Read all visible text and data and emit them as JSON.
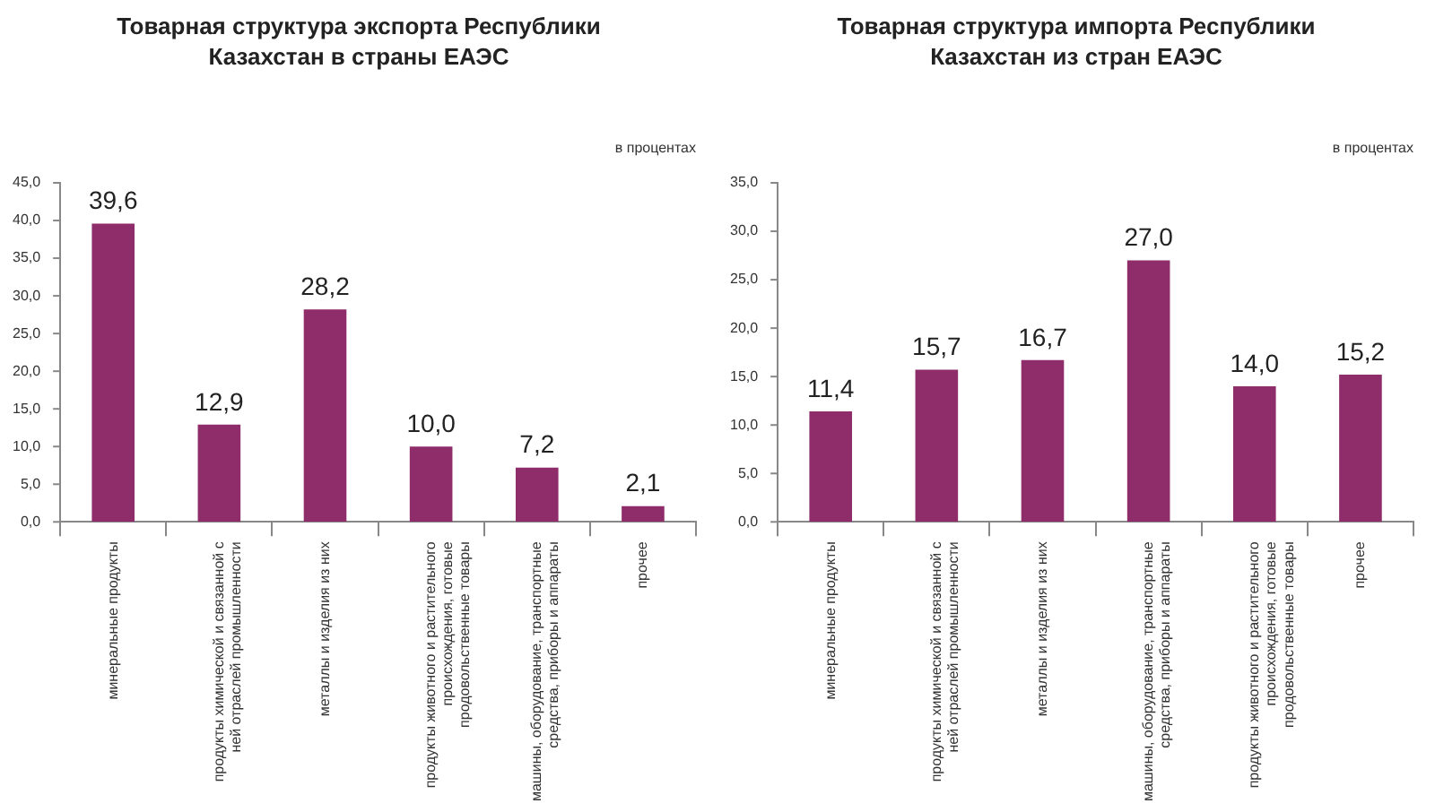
{
  "chart_data": [
    {
      "type": "bar",
      "title": "Товарная структура экспорта Республики  Казахстан в страны ЕАЭС",
      "ylabel": "в процентах",
      "categories": [
        "минеральные продукты",
        "продукты химической и связанной с ней отраслей промышленности",
        "металлы и изделия из них",
        "продукты животного и растительного происхождения, готовые продовольственные товары",
        "машины, оборудование, транспортные средства, приборы и аппараты",
        "прочее"
      ],
      "values": [
        39.6,
        12.9,
        28.2,
        10.0,
        7.2,
        2.1
      ],
      "value_labels": [
        "39,6",
        "12,9",
        "28,2",
        "10,0",
        "7,2",
        "2,1"
      ],
      "color": "#8f2d6b",
      "ylim": [
        0,
        45
      ],
      "yticks": [
        {
          "value": 0,
          "label": "0,0"
        },
        {
          "value": 5,
          "label": "5,0"
        },
        {
          "value": 10,
          "label": "10,0"
        },
        {
          "value": 15,
          "label": "15,0"
        },
        {
          "value": 20,
          "label": "20,0"
        },
        {
          "value": 25,
          "label": "25,0"
        },
        {
          "value": 30,
          "label": "30,0"
        },
        {
          "value": 35,
          "label": "35,0"
        },
        {
          "value": 40,
          "label": "40,0"
        },
        {
          "value": 45,
          "label": "45,0"
        }
      ],
      "legend": false
    },
    {
      "type": "bar",
      "title": "Товарная структура импорта Республики  Казахстан из стран ЕАЭС",
      "ylabel": "в процентах",
      "categories": [
        "минеральные продукты",
        "продукты химической и связанной с ней отраслей промышленности",
        "металлы и изделия из них",
        "машины, оборудование,  транспортные средства, приборы и аппараты",
        "продукты животного и растительного происхождения, готовые продовольственные товары",
        "прочее"
      ],
      "values": [
        11.4,
        15.7,
        16.7,
        27.0,
        14.0,
        15.2
      ],
      "value_labels": [
        "11,4",
        "15,7",
        "16,7",
        "27,0",
        "14,0",
        "15,2"
      ],
      "color": "#8f2d6b",
      "ylim": [
        0,
        35
      ],
      "yticks": [
        {
          "value": 0,
          "label": "0,0"
        },
        {
          "value": 5,
          "label": "5,0"
        },
        {
          "value": 10,
          "label": "10,0"
        },
        {
          "value": 15,
          "label": "15,0"
        },
        {
          "value": 20,
          "label": "20,0"
        },
        {
          "value": 25,
          "label": "25,0"
        },
        {
          "value": 30,
          "label": "30,0"
        },
        {
          "value": 35,
          "label": "35,0"
        }
      ],
      "legend": false
    }
  ]
}
